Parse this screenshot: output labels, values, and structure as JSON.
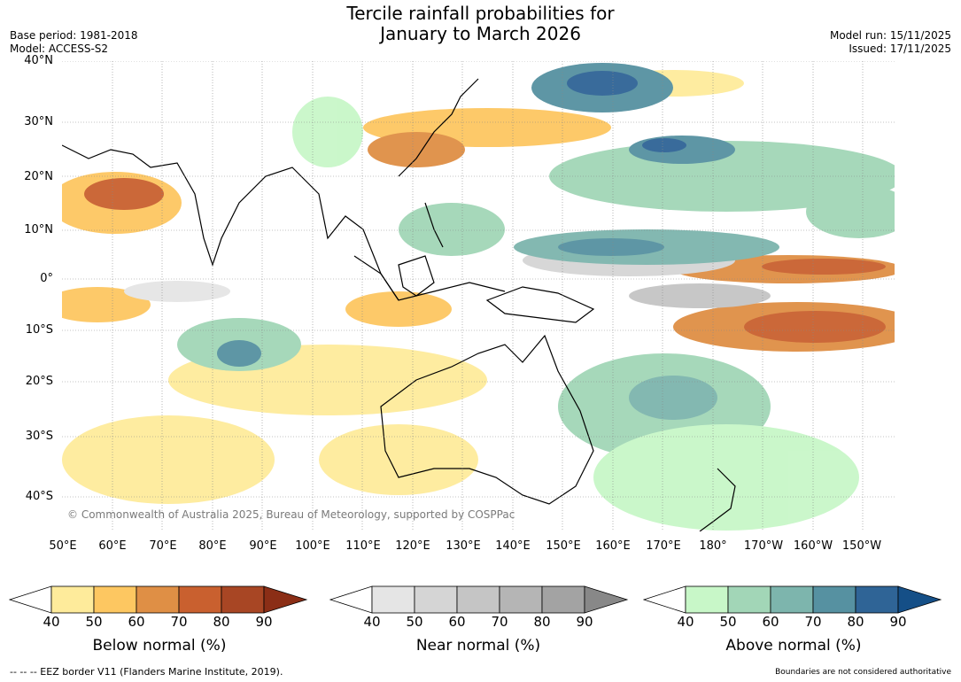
{
  "title_line1": "Tercile rainfall probabilities for",
  "title_line2": "January to March 2026",
  "base_period": "Base period: 1981-2018",
  "model": "Model: ACCESS-S2",
  "model_run": "Model run: 15/11/2025",
  "issued": "Issued: 17/11/2025",
  "copyright": "© Commonwealth of Australia 2025, Bureau of Meteorology, supported by COSPPac",
  "lat_labels": [
    "40°N",
    "30°N",
    "20°N",
    "10°N",
    "0°",
    "10°S",
    "20°S",
    "30°S",
    "40°S"
  ],
  "lon_labels": [
    "50°E",
    "60°E",
    "70°E",
    "80°E",
    "90°E",
    "100°E",
    "110°E",
    "120°E",
    "130°E",
    "140°E",
    "150°E",
    "160°E",
    "170°E",
    "180°",
    "170°W",
    "160°W",
    "150°W"
  ],
  "colorbars": [
    {
      "title": "Below normal (%)",
      "ticks": [
        "40",
        "50",
        "60",
        "70",
        "80",
        "90"
      ],
      "colors": [
        "#ffffff",
        "#feeb9b",
        "#fdc761",
        "#df8f45",
        "#c9602f",
        "#a84624",
        "#8b2e16"
      ]
    },
    {
      "title": "Near normal (%)",
      "ticks": [
        "40",
        "50",
        "60",
        "70",
        "80",
        "90"
      ],
      "colors": [
        "#ffffff",
        "#e5e5e5",
        "#d5d5d5",
        "#c5c5c5",
        "#b5b5b5",
        "#a3a3a3",
        "#888888"
      ]
    },
    {
      "title": "Above normal (%)",
      "ticks": [
        "40",
        "50",
        "60",
        "70",
        "80",
        "90"
      ],
      "colors": [
        "#ffffff",
        "#c8f7c8",
        "#a2d6b7",
        "#7db5ad",
        "#5691a1",
        "#2f6496",
        "#154f87"
      ]
    }
  ],
  "footer_left": "--  --  -- EEZ border V11 (Flanders Marine Institute, 2019).",
  "footer_right": "Boundaries are not considered authoritative"
}
